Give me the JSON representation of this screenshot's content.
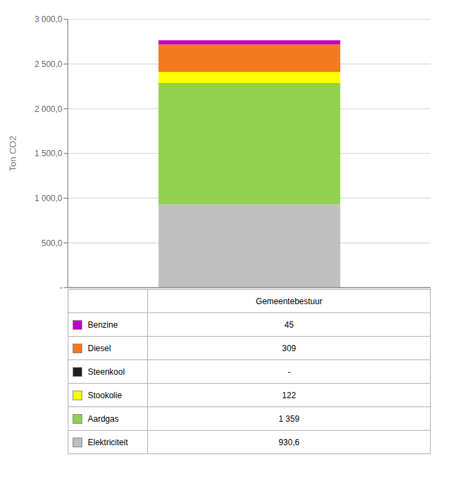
{
  "chart_data": {
    "type": "bar",
    "stacked": true,
    "categories": [
      "Gemeentebestuur"
    ],
    "series": [
      {
        "name": "Elektriciteit",
        "color": "#c0c0c0",
        "values": [
          930.6
        ],
        "value_labels": [
          "930,6"
        ]
      },
      {
        "name": "Aardgas",
        "color": "#92d050",
        "values": [
          1359
        ],
        "value_labels": [
          "1 359"
        ]
      },
      {
        "name": "Stookolie",
        "color": "#ffff00",
        "values": [
          122
        ],
        "value_labels": [
          "122"
        ]
      },
      {
        "name": "Steenkool",
        "color": "#1f1f1f",
        "values": [
          0
        ],
        "value_labels": [
          "-"
        ]
      },
      {
        "name": "Diesel",
        "color": "#f47920",
        "values": [
          309
        ],
        "value_labels": [
          "309"
        ]
      },
      {
        "name": "Benzine",
        "color": "#c000c0",
        "values": [
          45
        ],
        "value_labels": [
          "45"
        ]
      }
    ],
    "ylabel": "Ton CO2",
    "ylim": [
      0,
      3000
    ],
    "yticks": [
      {
        "value": 0,
        "label": "-"
      },
      {
        "value": 500,
        "label": "500,0"
      },
      {
        "value": 1000,
        "label": "1 000,0"
      },
      {
        "value": 1500,
        "label": "1 500,0"
      },
      {
        "value": 2000,
        "label": "2 000,0"
      },
      {
        "value": 2500,
        "label": "2 500,0"
      },
      {
        "value": 3000,
        "label": "3 000,0"
      }
    ],
    "grid": true,
    "tick_labels": "y"
  }
}
